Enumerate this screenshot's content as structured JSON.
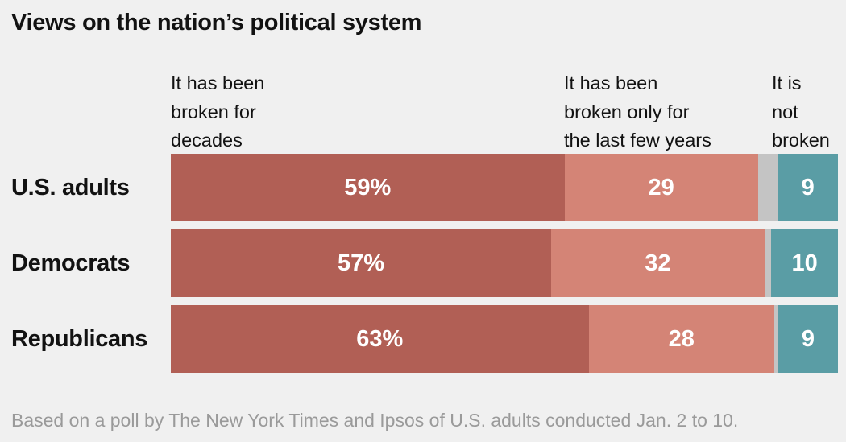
{
  "title": "Views on the nation’s political system",
  "footnote": "Based on a poll by The New York Times and Ipsos of U.S. adults conducted Jan. 2 to 10.",
  "colors": {
    "decades": "#b15f55",
    "last_few_years": "#d48476",
    "other": "#c4c4c4",
    "not_broken": "#5a9da5"
  },
  "chart_data": {
    "type": "bar",
    "orientation": "horizontal",
    "stacked": true,
    "title": "Views on the nation’s political system",
    "categories": [
      "U.S. adults",
      "Democrats",
      "Republicans"
    ],
    "series": [
      {
        "key": "decades",
        "name": "It has been broken for decades",
        "values": [
          59,
          57,
          63
        ],
        "labels": [
          "59%",
          "57%",
          "63%"
        ]
      },
      {
        "key": "last_few_years",
        "name": "It has been broken only for the last few years",
        "values": [
          29,
          32,
          28
        ],
        "labels": [
          "29",
          "32",
          "28"
        ]
      },
      {
        "key": "other",
        "values": [
          3,
          1,
          0.6
        ],
        "labels": [
          "",
          "",
          ""
        ]
      },
      {
        "key": "not_broken",
        "name": "It is not broken",
        "values": [
          9,
          10,
          9
        ],
        "labels": [
          "9",
          "10",
          "9"
        ]
      }
    ],
    "column_headers": [
      "It has been\nbroken for\ndecades",
      "It has been\nbroken only for\nthe last few years",
      "It is\nnot\nbroken"
    ],
    "xlim": [
      0,
      100
    ]
  }
}
